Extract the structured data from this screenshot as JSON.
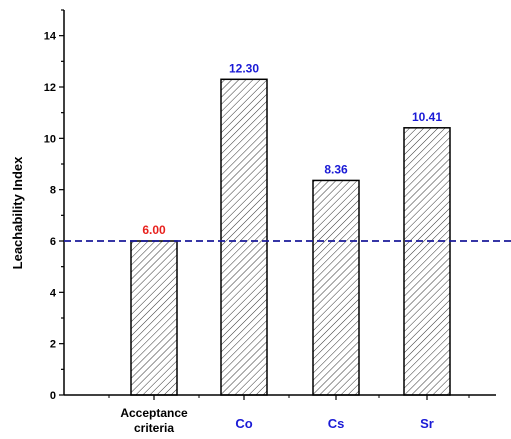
{
  "chart_data": {
    "type": "bar",
    "title": "",
    "xlabel": "",
    "ylabel": "Leachability Index",
    "categories": [
      [
        "Acceptance",
        "criteria"
      ],
      [
        "Co"
      ],
      [
        "Cs"
      ],
      [
        "Sr"
      ]
    ],
    "values": [
      6.0,
      12.3,
      8.36,
      10.41
    ],
    "value_labels": [
      "6.00",
      "12.30",
      "8.36",
      "10.41"
    ],
    "label_colors": [
      "#e8211d",
      "#1a1ad6",
      "#1a1ad6",
      "#1a1ad6"
    ],
    "category_label_colors": [
      "#000000",
      "#1a1ad6",
      "#1a1ad6",
      "#1a1ad6"
    ],
    "ylim": [
      0,
      15
    ],
    "yticks": [
      0,
      2,
      4,
      6,
      8,
      10,
      12,
      14
    ],
    "reference_line": {
      "y": 6,
      "color": "#1a1a99",
      "style": "dashed"
    },
    "bar_fill": "hatched",
    "grid": false,
    "legend": "none"
  }
}
